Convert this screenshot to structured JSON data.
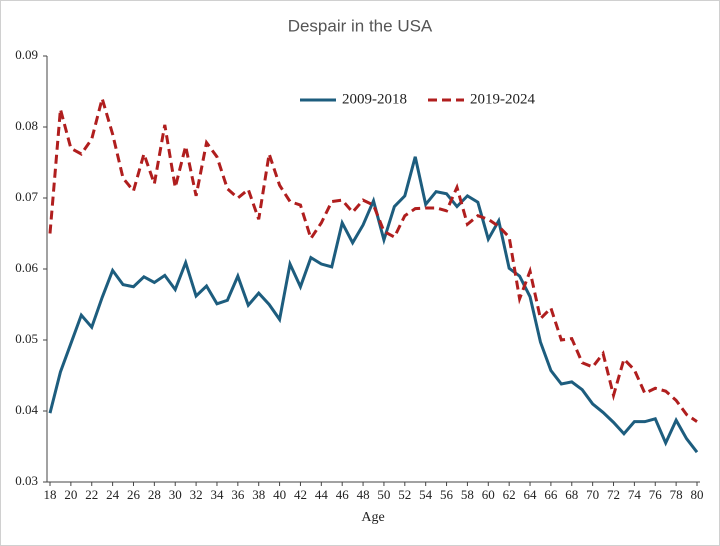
{
  "chart_data": {
    "type": "line",
    "title": "Despair in the USA",
    "x_label": "Age",
    "x": [
      18,
      19,
      20,
      21,
      22,
      23,
      24,
      25,
      26,
      27,
      28,
      29,
      30,
      31,
      32,
      33,
      34,
      35,
      36,
      37,
      38,
      39,
      40,
      41,
      42,
      43,
      44,
      45,
      46,
      47,
      48,
      49,
      50,
      51,
      52,
      53,
      54,
      55,
      56,
      57,
      58,
      59,
      60,
      61,
      62,
      63,
      64,
      65,
      66,
      67,
      68,
      69,
      70,
      71,
      72,
      73,
      74,
      75,
      76,
      77,
      78,
      79,
      80
    ],
    "xlim": [
      18,
      80
    ],
    "xticks": [
      18,
      20,
      22,
      24,
      26,
      28,
      30,
      32,
      34,
      36,
      38,
      40,
      42,
      44,
      46,
      48,
      50,
      52,
      54,
      56,
      58,
      60,
      62,
      64,
      66,
      68,
      70,
      72,
      74,
      76,
      78,
      80
    ],
    "ylim": [
      0.03,
      0.09
    ],
    "yticks": [
      0.03,
      0.04,
      0.05,
      0.06,
      0.07,
      0.08,
      0.09
    ],
    "grid": false,
    "legend": "top",
    "series": [
      {
        "name": "2009-2018",
        "color": "#1d5d7e",
        "dash": false,
        "values": [
          0.0397,
          0.0455,
          0.0495,
          0.0535,
          0.0518,
          0.056,
          0.0598,
          0.0578,
          0.0575,
          0.0589,
          0.0581,
          0.0591,
          0.0571,
          0.0609,
          0.0562,
          0.0576,
          0.0551,
          0.0556,
          0.059,
          0.0549,
          0.0566,
          0.055,
          0.0529,
          0.0607,
          0.0575,
          0.0616,
          0.0607,
          0.0603,
          0.0665,
          0.0637,
          0.0662,
          0.0696,
          0.0641,
          0.0688,
          0.0703,
          0.0758,
          0.0691,
          0.0709,
          0.0706,
          0.0688,
          0.0703,
          0.0694,
          0.0642,
          0.0668,
          0.0601,
          0.059,
          0.0561,
          0.0497,
          0.0457,
          0.0438,
          0.0441,
          0.043,
          0.041,
          0.0398,
          0.0384,
          0.0368,
          0.0385,
          0.0385,
          0.0389,
          0.0355,
          0.0387,
          0.0361,
          0.0342
        ]
      },
      {
        "name": "2019-2024",
        "color": "#b01e1e",
        "dash": true,
        "values": [
          0.065,
          0.0825,
          0.077,
          0.0762,
          0.0783,
          0.084,
          0.079,
          0.0728,
          0.071,
          0.0762,
          0.072,
          0.0803,
          0.0715,
          0.0773,
          0.0703,
          0.0778,
          0.0758,
          0.0713,
          0.07,
          0.0712,
          0.067,
          0.0762,
          0.0718,
          0.0695,
          0.069,
          0.0643,
          0.0665,
          0.0695,
          0.0697,
          0.068,
          0.0697,
          0.069,
          0.0653,
          0.0645,
          0.0675,
          0.0685,
          0.0686,
          0.0686,
          0.0682,
          0.0715,
          0.0663,
          0.0675,
          0.067,
          0.066,
          0.0645,
          0.0558,
          0.0597,
          0.053,
          0.0545,
          0.05,
          0.0502,
          0.0468,
          0.0462,
          0.0481,
          0.0422,
          0.0473,
          0.0458,
          0.0425,
          0.0432,
          0.0428,
          0.0415,
          0.0395,
          0.0385
        ]
      }
    ]
  }
}
